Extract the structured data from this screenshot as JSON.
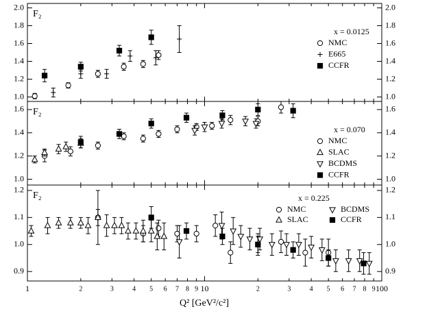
{
  "chart_data": {
    "type": "scatter",
    "xscale": "log",
    "xlim": [
      1,
      100
    ],
    "xticks": [
      1,
      2,
      3,
      4,
      5,
      6,
      7,
      8,
      9,
      10,
      {
        "value": 20,
        "label": "2"
      },
      {
        "value": 30,
        "label": "3"
      },
      {
        "value": 40,
        "label": "4"
      },
      {
        "value": 50,
        "label": "5"
      },
      {
        "value": 60,
        "label": "6"
      },
      {
        "value": 70,
        "label": "7"
      },
      {
        "value": 80,
        "label": "8"
      },
      {
        "value": 90,
        "label": "9"
      },
      100
    ],
    "xlabel": "Q² [GeV²/c²]",
    "panels": [
      {
        "ylabel": "F₂",
        "annotation": "x = 0.0125",
        "legend": "upper right",
        "legend_columns": 1,
        "ylim": [
          0.95,
          2.05
        ],
        "yticks": [
          {
            "value": 1,
            "label": "1.0"
          },
          1.2,
          1.4,
          1.6,
          1.8,
          {
            "value": 2,
            "label": "2.0"
          }
        ],
        "series": [
          {
            "name": "NMC",
            "marker": "circle",
            "color": "#000000",
            "x": [
              1.1,
              1.7,
              2.5,
              3.5,
              4.5,
              5.5
            ],
            "values": [
              1.01,
              1.13,
              1.26,
              1.34,
              1.37,
              1.47
            ],
            "errors": [
              0.03,
              0.03,
              0.04,
              0.04,
              0.04,
              0.05
            ]
          },
          {
            "name": "E665",
            "marker": "plus",
            "color": "#000000",
            "x": [
              1.4,
              2.0,
              2.8,
              3.8,
              5.3,
              7.2
            ],
            "values": [
              1.05,
              1.26,
              1.26,
              1.46,
              1.44,
              1.65
            ],
            "errors": [
              0.05,
              0.05,
              0.05,
              0.06,
              0.08,
              0.15
            ]
          },
          {
            "name": "CCFR",
            "marker": "square",
            "color": "#000000",
            "x": [
              1.25,
              2.0,
              3.3,
              5.0
            ],
            "values": [
              1.24,
              1.34,
              1.52,
              1.67
            ],
            "errors": [
              0.07,
              0.05,
              0.06,
              0.08
            ]
          }
        ]
      },
      {
        "ylabel": "F₂",
        "annotation": "x = 0.070",
        "legend": "upper right",
        "legend_columns": 1,
        "ylim": [
          0.95,
          1.67
        ],
        "yticks": [
          {
            "value": 1,
            "label": "1.0"
          },
          1.2,
          1.4,
          1.6
        ],
        "series": [
          {
            "name": "NMC",
            "marker": "circle",
            "color": "#000000",
            "x": [
              1.25,
              1.75,
              2.5,
              3.5,
              4.5,
              5.5,
              7.0,
              9.0,
              11,
              14,
              20,
              27
            ],
            "values": [
              1.2,
              1.24,
              1.29,
              1.37,
              1.35,
              1.39,
              1.43,
              1.45,
              1.46,
              1.51,
              1.5,
              1.62
            ],
            "errors": [
              0.05,
              0.04,
              0.03,
              0.03,
              0.03,
              0.03,
              0.03,
              0.03,
              0.03,
              0.04,
              0.04,
              0.05
            ]
          },
          {
            "name": "SLAC",
            "marker": "triangle-up",
            "color": "#000000",
            "x": [
              1.1,
              1.25,
              1.5,
              1.65,
              2.0
            ],
            "values": [
              1.17,
              1.23,
              1.26,
              1.28,
              1.31
            ],
            "errors": [
              0.03,
              0.03,
              0.04,
              0.04,
              0.04
            ]
          },
          {
            "name": "BCDMS",
            "marker": "triangle-down",
            "color": "#000000",
            "x": [
              8.8,
              10,
              12.5,
              17,
              19.5
            ],
            "values": [
              1.42,
              1.45,
              1.48,
              1.5,
              1.48
            ],
            "errors": [
              0.04,
              0.04,
              0.04,
              0.04,
              0.04
            ]
          },
          {
            "name": "CCFR",
            "marker": "square",
            "color": "#000000",
            "x": [
              2.0,
              3.3,
              5.0,
              7.9,
              12.6,
              20,
              31.6
            ],
            "values": [
              1.32,
              1.39,
              1.48,
              1.53,
              1.55,
              1.6,
              1.59
            ],
            "errors": [
              0.05,
              0.04,
              0.04,
              0.04,
              0.04,
              0.05,
              0.06
            ]
          }
        ]
      },
      {
        "ylabel": "F₂",
        "annotation": "x = 0.225",
        "legend": "upper right",
        "legend_columns": 2,
        "ylim": [
          0.865,
          1.22
        ],
        "yticks": [
          0.9,
          {
            "value": 1,
            "label": "1.0"
          },
          1.1,
          1.2
        ],
        "series": [
          {
            "name": "NMC",
            "marker": "circle",
            "color": "#000000",
            "x": [
              2.5,
              4.5,
              5.5,
              7.0,
              9.0,
              11.5,
              14,
              20,
              27,
              37,
              50
            ],
            "values": [
              1.1,
              1.04,
              1.06,
              1.04,
              1.04,
              1.07,
              0.97,
              1.0,
              1.01,
              0.97,
              0.97
            ],
            "errors": [
              0.03,
              0.03,
              0.03,
              0.03,
              0.03,
              0.04,
              0.04,
              0.04,
              0.04,
              0.05,
              0.05
            ]
          },
          {
            "name": "SLAC",
            "marker": "triangle-up",
            "color": "#000000",
            "x": [
              1.05,
              1.3,
              1.5,
              1.75,
              2.0,
              2.2,
              2.5,
              2.8,
              3.1,
              3.4,
              3.7,
              4.1,
              4.5,
              5.0,
              5.4,
              5.9
            ],
            "values": [
              1.05,
              1.07,
              1.08,
              1.08,
              1.08,
              1.07,
              1.1,
              1.07,
              1.07,
              1.07,
              1.05,
              1.05,
              1.05,
              1.05,
              1.03,
              1.03
            ],
            "errors": [
              0.02,
              0.03,
              0.02,
              0.02,
              0.02,
              0.03,
              0.1,
              0.04,
              0.03,
              0.03,
              0.03,
              0.03,
              0.04,
              0.04,
              0.05,
              0.05
            ]
          },
          {
            "name": "BCDMS",
            "marker": "triangle-down",
            "color": "#000000",
            "x": [
              7.2,
              12.5,
              14.5,
              16,
              18,
              20.5,
              24,
              29,
              34,
              40,
              46,
              55,
              65,
              75,
              85
            ],
            "values": [
              1.01,
              1.07,
              1.05,
              1.03,
              1.02,
              1.02,
              1.0,
              1.0,
              1.0,
              0.99,
              0.98,
              0.94,
              0.94,
              0.94,
              0.93
            ],
            "errors": [
              0.06,
              0.05,
              0.05,
              0.04,
              0.04,
              0.04,
              0.04,
              0.04,
              0.04,
              0.04,
              0.04,
              0.04,
              0.04,
              0.04,
              0.04
            ]
          },
          {
            "name": "CCFR",
            "marker": "square",
            "color": "#000000",
            "x": [
              5.0,
              7.9,
              12.6,
              20,
              31.6,
              50,
              79
            ],
            "values": [
              1.1,
              1.05,
              1.03,
              1.0,
              0.98,
              0.95,
              0.93
            ],
            "errors": [
              0.04,
              0.03,
              0.03,
              0.03,
              0.03,
              0.03,
              0.04
            ]
          }
        ]
      }
    ]
  }
}
